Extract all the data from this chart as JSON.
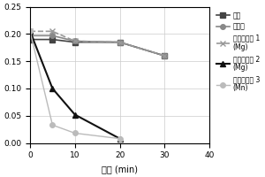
{
  "x": [
    0,
    5,
    10,
    20,
    30
  ],
  "series": [
    {
      "label": "裸板",
      "values": [
        0.19,
        0.19,
        0.185,
        0.185,
        0.16
      ],
      "color": "#444444",
      "marker": "s",
      "linewidth": 1.2,
      "markersize": 4,
      "linestyle": "-"
    },
    {
      "label": "电涂板",
      "values": [
        0.197,
        0.197,
        0.187,
        0.185,
        0.16
      ],
      "color": "#888888",
      "marker": "o",
      "linewidth": 1.2,
      "markersize": 4,
      "linestyle": "-"
    },
    {
      "label": "结构化陶瓷 1\n(Mg)",
      "values": [
        0.205,
        0.205,
        0.187,
        0.185,
        0.16
      ],
      "color": "#999999",
      "marker": "x",
      "linewidth": 1.2,
      "markersize": 5,
      "linestyle": "--"
    },
    {
      "label": "结构化陶瓷 2\n(Mg)",
      "values": [
        0.205,
        0.1,
        0.052,
        0.008,
        null
      ],
      "color": "#111111",
      "marker": "^",
      "linewidth": 1.5,
      "markersize": 5,
      "linestyle": "-"
    },
    {
      "label": "结构化陶瓷 3\n(Mn)",
      "values": [
        0.205,
        0.033,
        0.018,
        0.008,
        null
      ],
      "color": "#bbbbbb",
      "marker": "o",
      "linewidth": 1.0,
      "markersize": 4,
      "linestyle": "-"
    }
  ],
  "xlabel": "时间 (min)",
  "xlim": [
    0,
    40
  ],
  "ylim": [
    0,
    0.25
  ],
  "yticks": [
    0,
    0.05,
    0.1,
    0.15,
    0.2,
    0.25
  ],
  "xticks": [
    0,
    10,
    20,
    30,
    40
  ],
  "grid": true,
  "legend_fontsize": 5.5,
  "tick_fontsize": 6.5,
  "xlabel_fontsize": 7,
  "background_color": "#ffffff",
  "fig_width": 3.0,
  "fig_height": 2.0,
  "dpi": 100
}
